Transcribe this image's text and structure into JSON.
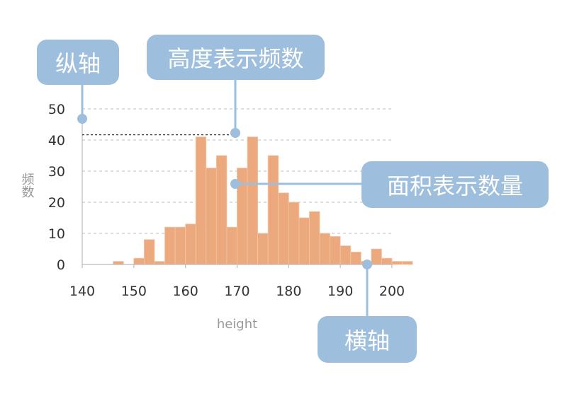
{
  "chart_data": {
    "type": "bar",
    "subtype": "histogram",
    "xlabel": "height",
    "ylabel": "频数",
    "xlim": [
      140,
      200
    ],
    "ylim": [
      0,
      50
    ],
    "x_ticks": [
      140,
      150,
      160,
      170,
      180,
      190,
      200
    ],
    "y_ticks": [
      0,
      10,
      20,
      30,
      40,
      50
    ],
    "bin_width": 2,
    "bins": [
      {
        "x0": 146,
        "x1": 148,
        "value": 1
      },
      {
        "x0": 148,
        "x1": 150,
        "value": 0
      },
      {
        "x0": 150,
        "x1": 152,
        "value": 2
      },
      {
        "x0": 152,
        "x1": 154,
        "value": 8
      },
      {
        "x0": 154,
        "x1": 156,
        "value": 1
      },
      {
        "x0": 156,
        "x1": 158,
        "value": 12
      },
      {
        "x0": 158,
        "x1": 160,
        "value": 12
      },
      {
        "x0": 160,
        "x1": 162,
        "value": 13
      },
      {
        "x0": 162,
        "x1": 164,
        "value": 41
      },
      {
        "x0": 164,
        "x1": 166,
        "value": 31
      },
      {
        "x0": 166,
        "x1": 168,
        "value": 35
      },
      {
        "x0": 168,
        "x1": 170,
        "value": 12
      },
      {
        "x0": 170,
        "x1": 172,
        "value": 31
      },
      {
        "x0": 172,
        "x1": 174,
        "value": 41
      },
      {
        "x0": 174,
        "x1": 176,
        "value": 10
      },
      {
        "x0": 176,
        "x1": 178,
        "value": 35
      },
      {
        "x0": 178,
        "x1": 180,
        "value": 23
      },
      {
        "x0": 180,
        "x1": 182,
        "value": 20
      },
      {
        "x0": 182,
        "x1": 184,
        "value": 15
      },
      {
        "x0": 184,
        "x1": 186,
        "value": 17
      },
      {
        "x0": 186,
        "x1": 188,
        "value": 10
      },
      {
        "x0": 188,
        "x1": 190,
        "value": 9
      },
      {
        "x0": 190,
        "x1": 192,
        "value": 6
      },
      {
        "x0": 192,
        "x1": 194,
        "value": 4
      },
      {
        "x0": 194,
        "x1": 196,
        "value": 1
      },
      {
        "x0": 196,
        "x1": 198,
        "value": 5
      },
      {
        "x0": 198,
        "x1": 200,
        "value": 2
      },
      {
        "x0": 200,
        "x1": 202,
        "value": 1
      },
      {
        "x0": 202,
        "x1": 204,
        "value": 1
      }
    ],
    "reference_line_value": 41,
    "grid": true,
    "bar_color": "#eba97d"
  },
  "annotations": {
    "y_axis": "纵轴",
    "height": "高度表示频数",
    "area": "面积表示数量",
    "x_axis": "横轴"
  },
  "colors": {
    "callout": "#9dbfdd",
    "bar": "#eba97d",
    "grid": "#cccccc",
    "axis": "#bbbbbb"
  }
}
